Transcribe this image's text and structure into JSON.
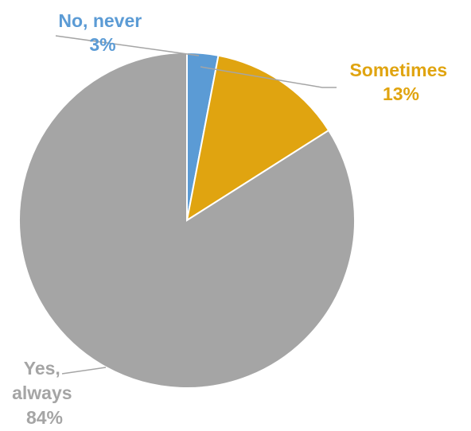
{
  "chart_data": {
    "type": "pie",
    "title": "",
    "slices": [
      {
        "label": "No, never",
        "value": 3,
        "value_label": "3%",
        "color": "#5b9bd5",
        "label_color": "#5b9bd5"
      },
      {
        "label": "Sometimes",
        "value": 13,
        "value_label": "13%",
        "color": "#e0a410",
        "label_color": "#e0a410"
      },
      {
        "label": "Yes, always",
        "value": 84,
        "value_label": "84%",
        "color": "#a5a5a5",
        "label_color": "#a5a5a5"
      }
    ],
    "start_angle_deg": 0,
    "direction": "clockwise",
    "legend": "none",
    "labels": "outside with leader lines"
  }
}
